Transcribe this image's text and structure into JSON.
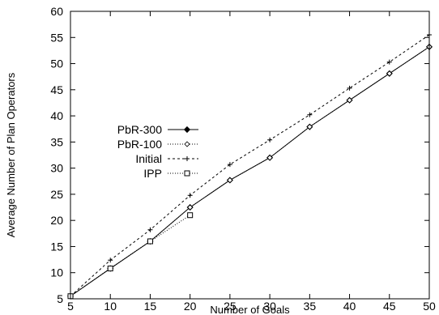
{
  "chart_data": {
    "type": "line",
    "xlabel": "Number of Goals",
    "ylabel": "Average Number of Plan Operators",
    "xlim": [
      5,
      50
    ],
    "ylim": [
      5,
      60
    ],
    "x_ticks": [
      5,
      10,
      15,
      20,
      25,
      30,
      35,
      40,
      45,
      50
    ],
    "y_ticks": [
      5,
      10,
      15,
      20,
      25,
      30,
      35,
      40,
      45,
      50,
      55,
      60
    ],
    "grid": false,
    "legend_position": "left-center",
    "series": [
      {
        "name": "PbR-300",
        "style": "solid",
        "marker": "diamond",
        "x": [
          5,
          10,
          15,
          20,
          25,
          30,
          35,
          40,
          45,
          50
        ],
        "y": [
          5.5,
          10.8,
          16,
          22.5,
          27.7,
          32,
          37.9,
          43,
          48.1,
          53.2
        ]
      },
      {
        "name": "PbR-100",
        "style": "dotted",
        "marker": "diamond-open",
        "x": [
          5,
          10,
          15,
          20,
          25,
          30,
          35,
          40,
          45,
          50
        ],
        "y": [
          5.5,
          10.8,
          16,
          22.5,
          27.7,
          32,
          37.9,
          43,
          48.1,
          53.2
        ]
      },
      {
        "name": "Initial",
        "style": "dashed",
        "marker": "plus",
        "x": [
          5,
          10,
          15,
          20,
          25,
          30,
          35,
          40,
          45,
          50
        ],
        "y": [
          5.5,
          12.4,
          18.2,
          24.8,
          30.7,
          35.4,
          40.2,
          45.3,
          50.3,
          55.5
        ]
      },
      {
        "name": "IPP",
        "style": "dotted",
        "marker": "square",
        "x": [
          5,
          10,
          15,
          20
        ],
        "y": [
          5.5,
          10.8,
          16,
          21
        ]
      }
    ]
  }
}
